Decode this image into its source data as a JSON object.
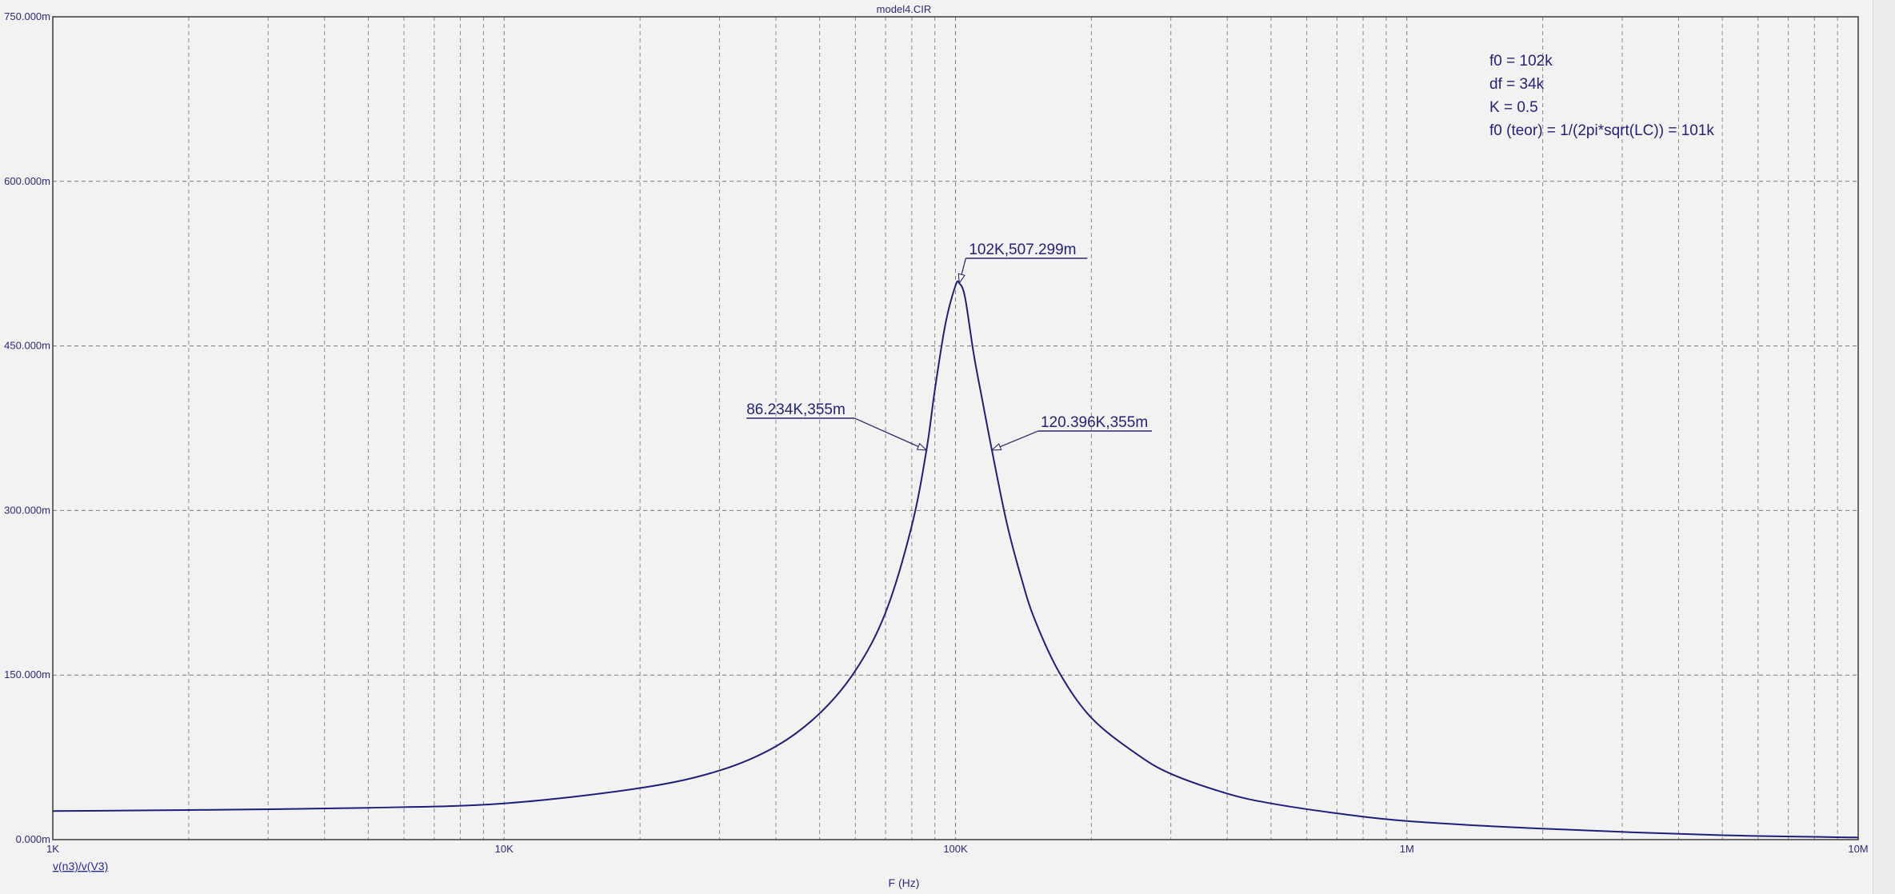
{
  "window": {
    "title": "model4.CIR"
  },
  "chart_data": {
    "type": "line",
    "x_scale": "log",
    "xlabel": "F (Hz)",
    "ylabel": "",
    "xlim": [
      1000,
      10000000
    ],
    "ylim": [
      0,
      0.75
    ],
    "grid": true,
    "x_tick_labels": [
      {
        "x": 1000,
        "label": "1K"
      },
      {
        "x": 10000,
        "label": "10K"
      },
      {
        "x": 100000,
        "label": "100K"
      },
      {
        "x": 1000000,
        "label": "1M"
      },
      {
        "x": 10000000,
        "label": "10M"
      }
    ],
    "y_tick_labels": [
      {
        "y": 0,
        "label": "0.000m"
      },
      {
        "y": 0.15,
        "label": "150.000m"
      },
      {
        "y": 0.3,
        "label": "300.000m"
      },
      {
        "y": 0.45,
        "label": "450.000m"
      },
      {
        "y": 0.6,
        "label": "600.000m"
      },
      {
        "y": 0.75,
        "label": "750.000m"
      }
    ],
    "series": [
      {
        "name": "v(n3)/v(V3)",
        "color": "#1f1f7a",
        "x": [
          1000,
          2000,
          5000,
          10000,
          20000,
          30000,
          40000,
          50000,
          60000,
          70000,
          80000,
          86234,
          90000,
          95000,
          100000,
          102000,
          105000,
          110000,
          115000,
          120396,
          130000,
          140000,
          150000,
          170000,
          200000,
          250000,
          300000,
          400000,
          500000,
          700000,
          1000000,
          2000000,
          5000000,
          10000000
        ],
        "values": [
          0.026,
          0.027,
          0.029,
          0.033,
          0.047,
          0.063,
          0.085,
          0.115,
          0.154,
          0.207,
          0.286,
          0.355,
          0.41,
          0.47,
          0.505,
          0.507,
          0.494,
          0.44,
          0.398,
          0.355,
          0.288,
          0.238,
          0.2,
          0.152,
          0.111,
          0.079,
          0.06,
          0.042,
          0.033,
          0.024,
          0.017,
          0.01,
          0.004,
          0.002
        ]
      }
    ],
    "annotations": [
      {
        "x": 102000,
        "y": 0.507299,
        "label": "102K,507.299m",
        "side": "right"
      },
      {
        "x": 86234,
        "y": 0.355,
        "label": "86.234K,355m",
        "side": "left"
      },
      {
        "x": 120396,
        "y": 0.355,
        "label": "120.396K,355m",
        "side": "right"
      }
    ],
    "info_text": [
      "f0 = 102k",
      "df = 34k",
      "K = 0.5",
      "f0 (teor) = 1/(2pi*sqrt(LC)) = 101k"
    ],
    "legend": {
      "label": "v(n3)/v(V3)",
      "placement": "bottom-left"
    }
  }
}
